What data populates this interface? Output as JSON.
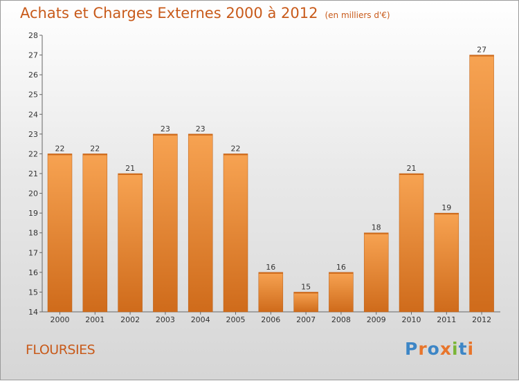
{
  "header": {
    "title": "Achats et Charges Externes 2000 à 2012",
    "unit_note": "(en milliers d'€)"
  },
  "footer": {
    "commune": "FLOURSIES",
    "logo_text": "Proxiti"
  },
  "colors": {
    "title": "#c85a1a",
    "bar_light": "#f7a352",
    "bar_dark": "#cf6b1b",
    "logo_letters": [
      "#3d86c6",
      "#e8752b",
      "#3d86c6",
      "#e8752b",
      "#7ab536",
      "#3d86c6",
      "#e8752b"
    ]
  },
  "chart_data": {
    "type": "bar",
    "categories": [
      "2000",
      "2001",
      "2002",
      "2003",
      "2004",
      "2005",
      "2006",
      "2007",
      "2008",
      "2009",
      "2010",
      "2011",
      "2012"
    ],
    "values": [
      22,
      22,
      21,
      23,
      23,
      22,
      16,
      15,
      16,
      18,
      21,
      19,
      27
    ],
    "data_labels": [
      "22",
      "22",
      "21",
      "23",
      "23",
      "22",
      "16",
      "15",
      "16",
      "18",
      "21",
      "19",
      "27"
    ],
    "title": "Achats et Charges Externes 2000 à 2012",
    "ylim": [
      14,
      28
    ],
    "yticks": [
      "14",
      "15",
      "16",
      "17",
      "18",
      "19",
      "20",
      "21",
      "22",
      "23",
      "24",
      "25",
      "26",
      "27",
      "28"
    ],
    "grid": false,
    "legend": "none"
  }
}
